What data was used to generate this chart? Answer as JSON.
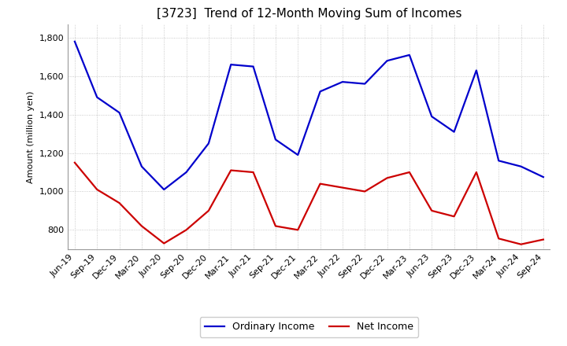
{
  "title": "[3723]  Trend of 12-Month Moving Sum of Incomes",
  "ylabel": "Amount (million yen)",
  "xlabels": [
    "Jun-19",
    "Sep-19",
    "Dec-19",
    "Mar-20",
    "Jun-20",
    "Sep-20",
    "Dec-20",
    "Mar-21",
    "Jun-21",
    "Sep-21",
    "Dec-21",
    "Mar-22",
    "Jun-22",
    "Sep-22",
    "Dec-22",
    "Mar-23",
    "Jun-23",
    "Sep-23",
    "Dec-23",
    "Mar-24",
    "Jun-24",
    "Sep-24"
  ],
  "ordinary_income": [
    1780,
    1490,
    1410,
    1130,
    1010,
    1100,
    1250,
    1660,
    1650,
    1270,
    1190,
    1520,
    1570,
    1560,
    1680,
    1710,
    1390,
    1310,
    1630,
    1160,
    1130,
    1075
  ],
  "net_income": [
    1150,
    1010,
    940,
    820,
    730,
    800,
    900,
    1110,
    1100,
    820,
    800,
    1040,
    1020,
    1000,
    1070,
    1100,
    900,
    870,
    1100,
    755,
    725,
    750
  ],
  "ordinary_color": "#0000cc",
  "net_color": "#cc0000",
  "background_color": "#ffffff",
  "plot_bg_color": "#ffffff",
  "grid_color": "#bbbbbb",
  "ylim": [
    700,
    1870
  ],
  "yticks": [
    800,
    1000,
    1200,
    1400,
    1600,
    1800
  ],
  "title_fontsize": 11,
  "axis_label_fontsize": 8,
  "tick_fontsize": 8,
  "legend_labels": [
    "Ordinary Income",
    "Net Income"
  ],
  "legend_fontsize": 9
}
